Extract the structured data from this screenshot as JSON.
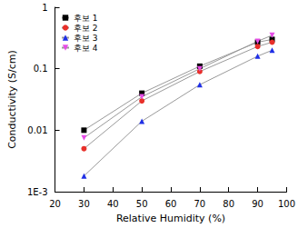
{
  "chart_data": {
    "type": "line",
    "x_label": "Relative Humidity (%)",
    "y_label": "Conductivity (S/cm)",
    "log": "y",
    "grid": false,
    "legend": "upper left",
    "xlim": [
      20,
      100
    ],
    "xticks": [
      20,
      30,
      40,
      50,
      60,
      70,
      80,
      90,
      100
    ],
    "ylim": [
      0.001,
      1
    ],
    "yticks": [
      {
        "value": 0.001,
        "label": "1E-3"
      },
      0.01,
      0.1,
      1
    ],
    "series": [
      {
        "name": "후보 1",
        "color": "#000000",
        "marker": "square",
        "x": [
          30,
          50,
          70,
          90,
          95
        ],
        "values": [
          0.01,
          0.04,
          0.11,
          0.27,
          0.3
        ]
      },
      {
        "name": "후보 2",
        "color": "#e8302a",
        "marker": "circle",
        "x": [
          30,
          50,
          70,
          90,
          95
        ],
        "values": [
          0.005,
          0.03,
          0.09,
          0.23,
          0.27
        ]
      },
      {
        "name": "후보 3",
        "color": "#1f2fe6",
        "marker": "triangle",
        "x": [
          30,
          50,
          70,
          90,
          95
        ],
        "values": [
          0.0018,
          0.014,
          0.055,
          0.16,
          0.2
        ]
      },
      {
        "name": "후보 4",
        "color": "#e64ce6",
        "marker": "triangle_down",
        "x": [
          30,
          50,
          70,
          90,
          95
        ],
        "values": [
          0.0075,
          0.035,
          0.1,
          0.28,
          0.35
        ]
      }
    ]
  }
}
